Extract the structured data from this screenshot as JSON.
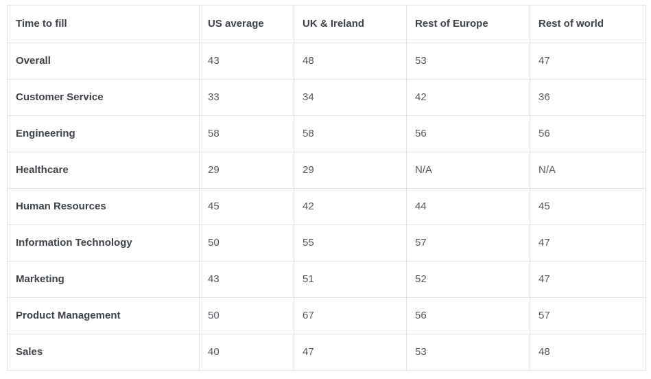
{
  "table": {
    "columns": [
      "Time to fill",
      "US average",
      "UK & Ireland",
      "Rest of Europe",
      "Rest of world"
    ],
    "rows": [
      {
        "label": "Overall",
        "values": [
          "43",
          "48",
          "53",
          "47"
        ]
      },
      {
        "label": "Customer Service",
        "values": [
          "33",
          "34",
          "42",
          "36"
        ]
      },
      {
        "label": "Engineering",
        "values": [
          "58",
          "58",
          "56",
          "56"
        ]
      },
      {
        "label": "Healthcare",
        "values": [
          "29",
          "29",
          "N/A",
          "N/A"
        ]
      },
      {
        "label": "Human Resources",
        "values": [
          "45",
          "42",
          "44",
          "45"
        ]
      },
      {
        "label": "Information Technology",
        "values": [
          "50",
          "55",
          "57",
          "47"
        ]
      },
      {
        "label": "Marketing",
        "values": [
          "43",
          "51",
          "52",
          "47"
        ]
      },
      {
        "label": "Product Management",
        "values": [
          "50",
          "67",
          "56",
          "57"
        ]
      },
      {
        "label": "Sales",
        "values": [
          "40",
          "47",
          "53",
          "48"
        ]
      }
    ]
  },
  "colors": {
    "border": "#e2e2e2",
    "header_text": "#3e444a",
    "value_text": "#55585e",
    "background": "#ffffff"
  },
  "chart_data": {
    "type": "table",
    "title": "Time to fill",
    "categories": [
      "Overall",
      "Customer Service",
      "Engineering",
      "Healthcare",
      "Human Resources",
      "Information Technology",
      "Marketing",
      "Product Management",
      "Sales"
    ],
    "series": [
      {
        "name": "US average",
        "values": [
          43,
          33,
          58,
          29,
          45,
          50,
          43,
          50,
          40
        ]
      },
      {
        "name": "UK & Ireland",
        "values": [
          48,
          34,
          58,
          29,
          42,
          55,
          51,
          67,
          47
        ]
      },
      {
        "name": "Rest of Europe",
        "values": [
          53,
          42,
          56,
          null,
          44,
          57,
          52,
          56,
          53
        ]
      },
      {
        "name": "Rest of world",
        "values": [
          47,
          36,
          56,
          null,
          45,
          47,
          47,
          57,
          48
        ]
      }
    ],
    "missing_value_label": "N/A",
    "legend_position": "none",
    "grid": true
  }
}
